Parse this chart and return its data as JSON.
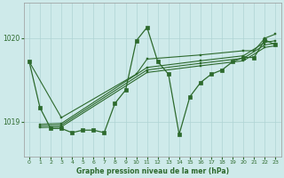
{
  "xlabel": "Graphe pression niveau de la mer (hPa)",
  "bg_color": "#ceeaea",
  "grid_color": "#afd4d4",
  "line_color": "#2d6a2d",
  "marker_color": "#2d6a2d",
  "yticks": [
    1019,
    1020
  ],
  "ylim": [
    1018.58,
    1020.42
  ],
  "xlim": [
    -0.5,
    23.5
  ],
  "xticks": [
    0,
    1,
    2,
    3,
    4,
    5,
    6,
    7,
    8,
    9,
    10,
    11,
    12,
    13,
    14,
    15,
    16,
    17,
    18,
    19,
    20,
    21,
    22,
    23
  ],
  "main_y": [
    1019.72,
    1019.17,
    1018.92,
    1018.92,
    1018.87,
    1018.9,
    1018.9,
    1018.87,
    1019.22,
    1019.38,
    1019.97,
    1020.13,
    1019.72,
    1019.57,
    1018.85,
    1019.3,
    1019.47,
    1019.57,
    1019.62,
    1019.72,
    1019.77,
    1019.77,
    1019.98,
    1019.92
  ],
  "diag_lines": [
    {
      "x": [
        1,
        3,
        10,
        11,
        12,
        16,
        20,
        21,
        22,
        23
      ],
      "y": [
        1019.18,
        1019.05,
        1019.55,
        1019.73,
        1019.62,
        1019.78,
        1019.82,
        1019.82,
        1019.97,
        1020.02
      ]
    },
    {
      "x": [
        1,
        3,
        11,
        16,
        20,
        22,
        23
      ],
      "y": [
        1018.95,
        1018.97,
        1019.63,
        1019.72,
        1019.77,
        1019.93,
        1019.95
      ]
    },
    {
      "x": [
        1,
        3,
        11,
        16,
        20,
        22,
        23
      ],
      "y": [
        1018.93,
        1018.95,
        1019.6,
        1019.69,
        1019.74,
        1019.9,
        1019.92
      ]
    },
    {
      "x": [
        1,
        3,
        11,
        16,
        20,
        22,
        23
      ],
      "y": [
        1018.91,
        1018.93,
        1019.57,
        1019.66,
        1019.71,
        1019.87,
        1019.89
      ]
    }
  ]
}
